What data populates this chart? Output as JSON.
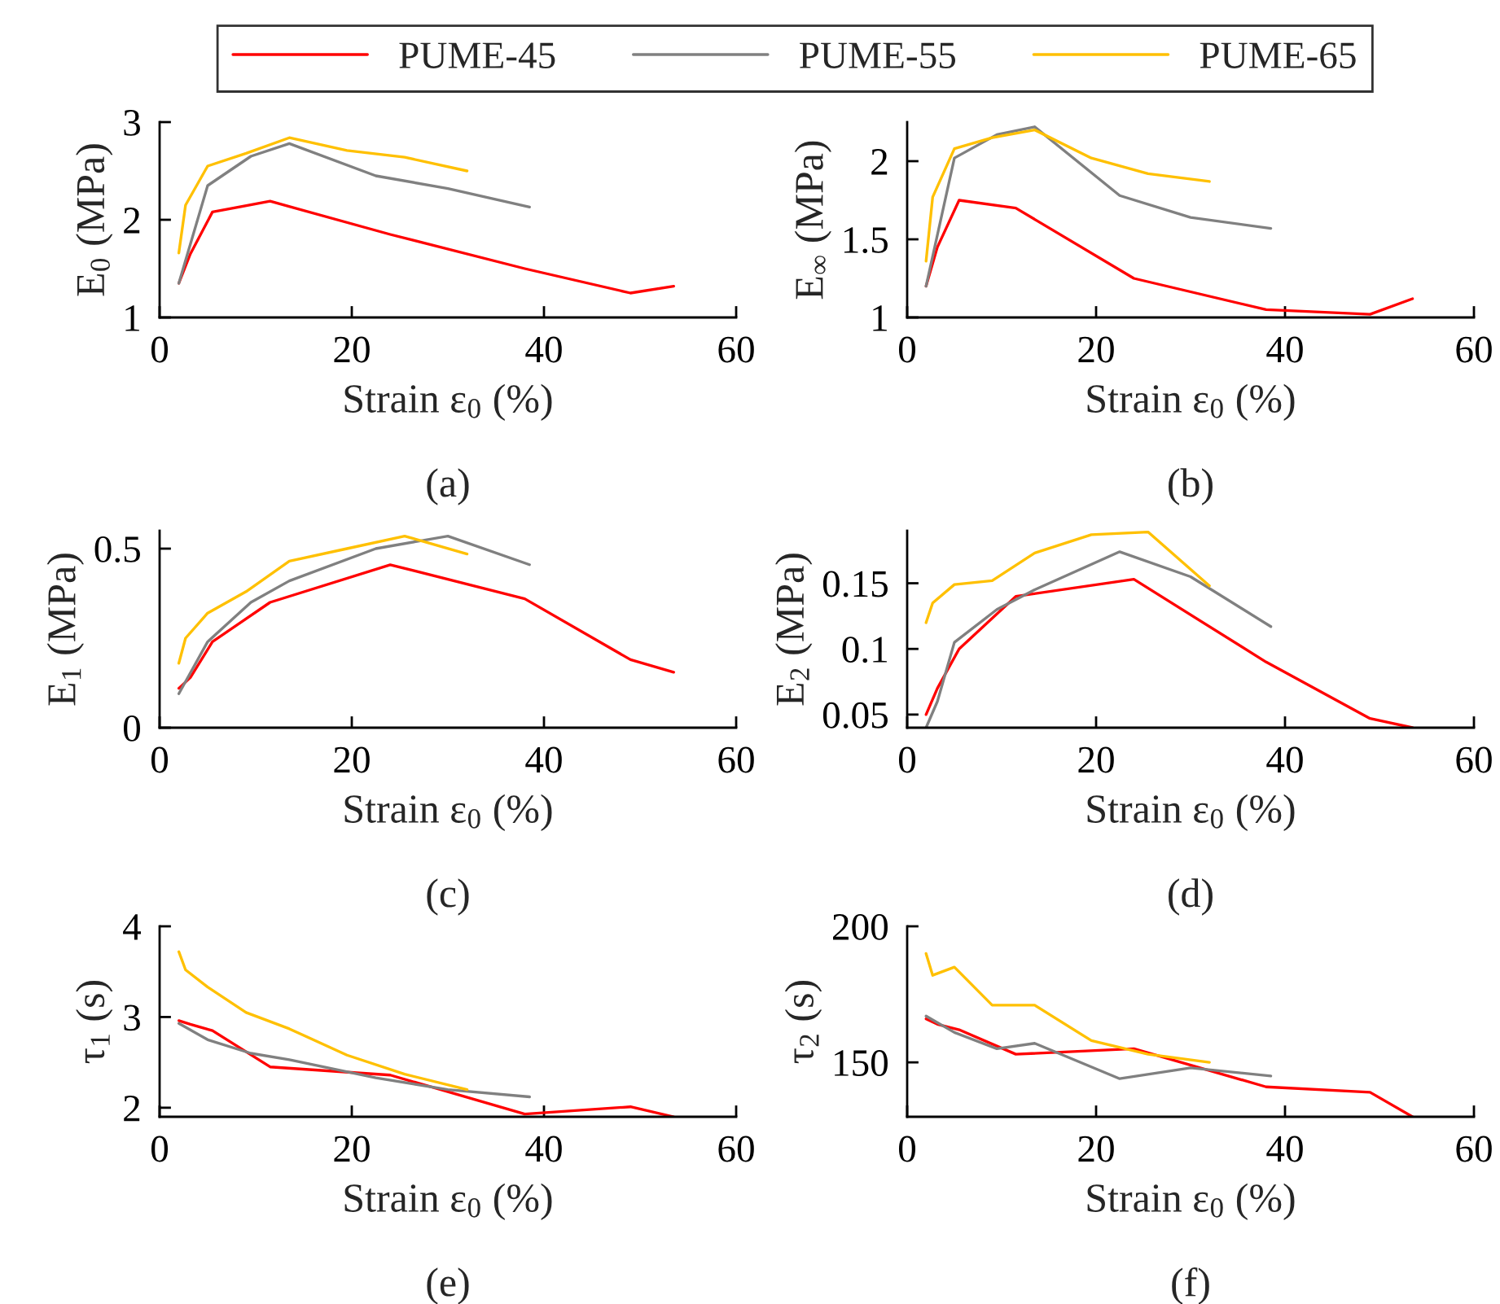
{
  "chart_data": [
    {
      "type": "line",
      "ylabel": "E$_{0}$ (MPa)",
      "xlabel": "Strain ε$_{0}$ (%)",
      "annotations": [
        "(a)"
      ],
      "xlim": [
        0,
        60
      ],
      "xticks": [
        0,
        20,
        40,
        60
      ],
      "ylim": [
        1,
        3
      ],
      "yticks": [
        1,
        2,
        3
      ],
      "legend": "top",
      "grid": false,
      "series": [
        {
          "name": "PUME-45",
          "color": "#ff0000",
          "x": [
            2,
            3.2,
            5.5,
            11.5,
            24,
            38,
            49,
            53.5
          ],
          "values": [
            1.35,
            1.65,
            2.08,
            2.19,
            1.85,
            1.5,
            1.25,
            1.32
          ]
        },
        {
          "name": "PUME-55",
          "color": "#808080",
          "x": [
            2,
            5,
            9.5,
            13.5,
            22.5,
            30,
            38.5
          ],
          "values": [
            1.35,
            2.35,
            2.65,
            2.78,
            2.45,
            2.32,
            2.13
          ]
        },
        {
          "name": "PUME-65",
          "color": "#ffc000",
          "x": [
            2,
            2.7,
            5,
            9,
            13.5,
            19.5,
            25.5,
            32
          ],
          "values": [
            1.66,
            2.15,
            2.55,
            2.68,
            2.84,
            2.71,
            2.64,
            2.5
          ]
        }
      ]
    },
    {
      "type": "line",
      "ylabel": "E$_{∞}$ (MPa)",
      "xlabel": "Strain ε$_{0}$ (%)",
      "annotations": [
        "(b)"
      ],
      "xlim": [
        0,
        60
      ],
      "xticks": [
        0,
        20,
        40,
        60
      ],
      "ylim": [
        1,
        2.25
      ],
      "yticks": [
        1,
        1.5,
        2
      ],
      "grid": false,
      "series": [
        {
          "color": "#ff0000",
          "x": [
            2,
            3.2,
            5.5,
            11.5,
            24,
            38,
            49,
            53.5
          ],
          "values": [
            1.2,
            1.45,
            1.75,
            1.7,
            1.25,
            1.05,
            1.02,
            1.12
          ]
        },
        {
          "color": "#808080",
          "x": [
            2,
            5,
            9.5,
            13.5,
            22.5,
            30,
            38.5
          ],
          "values": [
            1.2,
            2.02,
            2.17,
            2.22,
            1.78,
            1.64,
            1.57
          ]
        },
        {
          "color": "#ffc000",
          "x": [
            2,
            2.7,
            5,
            9,
            13.5,
            19.5,
            25.5,
            32
          ],
          "values": [
            1.36,
            1.77,
            2.08,
            2.15,
            2.2,
            2.02,
            1.92,
            1.87
          ]
        }
      ]
    },
    {
      "type": "line",
      "ylabel": "E$_{1}$ (MPa)",
      "xlabel": "Strain ε$_{0}$ (%)",
      "annotations": [
        "(c)"
      ],
      "xlim": [
        0,
        60
      ],
      "xticks": [
        0,
        20,
        40,
        60
      ],
      "ylim": [
        0,
        0.55
      ],
      "yticks": [
        0,
        0.5
      ],
      "grid": false,
      "series": [
        {
          "color": "#ff0000",
          "x": [
            2,
            3.2,
            5.5,
            11.5,
            24,
            38,
            49,
            53.5
          ],
          "values": [
            0.11,
            0.14,
            0.24,
            0.35,
            0.455,
            0.36,
            0.19,
            0.155
          ]
        },
        {
          "color": "#808080",
          "x": [
            2,
            5,
            9.5,
            13.5,
            22.5,
            30,
            38.5
          ],
          "values": [
            0.095,
            0.24,
            0.35,
            0.41,
            0.5,
            0.535,
            0.455
          ]
        },
        {
          "color": "#ffc000",
          "x": [
            2,
            2.7,
            5,
            9,
            13.5,
            19.5,
            25.5,
            32
          ],
          "values": [
            0.18,
            0.25,
            0.32,
            0.38,
            0.465,
            0.5,
            0.535,
            0.485
          ]
        }
      ]
    },
    {
      "type": "line",
      "ylabel": "E$_{2}$ (MPa)",
      "xlabel": "Strain ε$_{0}$ (%)",
      "annotations": [
        "(d)"
      ],
      "xlim": [
        0,
        60
      ],
      "xticks": [
        0,
        20,
        40,
        60
      ],
      "ylim": [
        0.04,
        0.19
      ],
      "yticks": [
        0.05,
        0.1,
        0.15
      ],
      "grid": false,
      "series": [
        {
          "color": "#ff0000",
          "x": [
            2,
            3.2,
            5.5,
            11.5,
            24,
            38,
            49,
            53.5
          ],
          "values": [
            0.05,
            0.07,
            0.1,
            0.14,
            0.153,
            0.09,
            0.047,
            0.04
          ]
        },
        {
          "color": "#808080",
          "x": [
            2,
            3.2,
            5,
            9.5,
            13.5,
            22.5,
            30,
            38.5
          ],
          "values": [
            0.04,
            0.06,
            0.105,
            0.13,
            0.145,
            0.174,
            0.155,
            0.117
          ]
        },
        {
          "color": "#ffc000",
          "x": [
            2,
            2.7,
            5,
            9,
            13.5,
            19.5,
            25.5,
            32
          ],
          "values": [
            0.12,
            0.135,
            0.149,
            0.152,
            0.173,
            0.187,
            0.189,
            0.148
          ]
        }
      ]
    },
    {
      "type": "line",
      "ylabel": "τ$_{1}$ (s)",
      "xlabel": "Strain ε$_{0}$ (%)",
      "annotations": [
        "(e)"
      ],
      "xlim": [
        0,
        60
      ],
      "xticks": [
        0,
        20,
        40,
        60
      ],
      "ylim": [
        1.9,
        4
      ],
      "yticks": [
        2,
        3,
        4
      ],
      "grid": false,
      "series": [
        {
          "color": "#ff0000",
          "x": [
            2,
            3.2,
            5.5,
            11.5,
            24,
            38,
            49,
            53.5
          ],
          "values": [
            2.96,
            2.92,
            2.85,
            2.45,
            2.36,
            1.93,
            2.01,
            1.9
          ]
        },
        {
          "color": "#808080",
          "x": [
            2,
            5,
            9.5,
            13.5,
            22.5,
            30,
            38.5
          ],
          "values": [
            2.93,
            2.75,
            2.6,
            2.53,
            2.33,
            2.2,
            2.12
          ]
        },
        {
          "color": "#ffc000",
          "x": [
            2,
            2.7,
            5,
            9,
            13.5,
            19.5,
            25.5,
            32
          ],
          "values": [
            3.72,
            3.52,
            3.33,
            3.05,
            2.87,
            2.58,
            2.37,
            2.2
          ]
        }
      ]
    },
    {
      "type": "line",
      "ylabel": "τ$_{2}$ (s)",
      "xlabel": "Strain ε$_{0}$ (%)",
      "annotations": [
        "(f)"
      ],
      "xlim": [
        0,
        60
      ],
      "xticks": [
        0,
        20,
        40,
        60
      ],
      "ylim": [
        130,
        200
      ],
      "yticks": [
        150,
        200
      ],
      "grid": false,
      "series": [
        {
          "color": "#ff0000",
          "x": [
            2,
            3.2,
            5.5,
            11.5,
            24,
            38,
            49,
            53.5
          ],
          "values": [
            166,
            164,
            162,
            153,
            155,
            141,
            139,
            130
          ]
        },
        {
          "color": "#808080",
          "x": [
            2,
            5,
            9.5,
            13.5,
            22.5,
            30,
            38.5
          ],
          "values": [
            167,
            161,
            155,
            157,
            144,
            148,
            145
          ]
        },
        {
          "color": "#ffc000",
          "x": [
            2,
            2.7,
            5,
            9,
            13.5,
            19.5,
            25.5,
            32
          ],
          "values": [
            190,
            182,
            185,
            171,
            171,
            158,
            153,
            150
          ]
        }
      ]
    }
  ]
}
